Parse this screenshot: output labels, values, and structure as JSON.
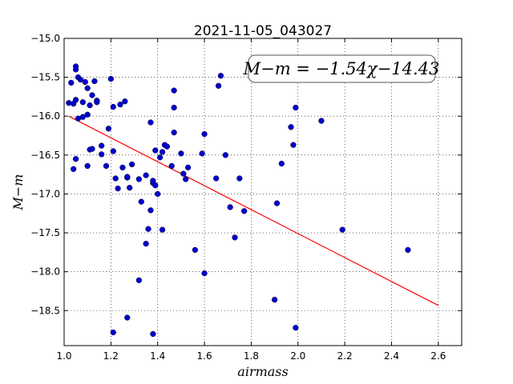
{
  "chart_data": {
    "type": "scatter",
    "title": "2021-11-05_043027",
    "xlabel": "airmass",
    "ylabel": "M−m",
    "xlim": [
      1.0,
      2.7
    ],
    "ylim": [
      -15.0,
      -18.95
    ],
    "y_inverted": true,
    "grid": true,
    "xticks": [
      "1.0",
      "1.2",
      "1.4",
      "1.6",
      "1.8",
      "2.0",
      "2.2",
      "2.4",
      "2.6"
    ],
    "yticks": [
      "−15.0",
      "−15.5",
      "−16.0",
      "−16.5",
      "−17.0",
      "−17.5",
      "−18.0",
      "−18.5"
    ],
    "annotation": "M−m = −1.54χ−14.43",
    "fit_line": {
      "slope": -1.54,
      "intercept": -14.43,
      "x_range": [
        1.02,
        2.6
      ],
      "color": "#ff0000"
    },
    "point_color": "#0000cc",
    "points": [
      [
        1.02,
        -15.83
      ],
      [
        1.03,
        -15.57
      ],
      [
        1.04,
        -15.84
      ],
      [
        1.05,
        -15.79
      ],
      [
        1.05,
        -15.36
      ],
      [
        1.05,
        -15.4
      ],
      [
        1.06,
        -15.5
      ],
      [
        1.06,
        -16.03
      ],
      [
        1.07,
        -15.53
      ],
      [
        1.08,
        -16.01
      ],
      [
        1.08,
        -15.82
      ],
      [
        1.09,
        -15.56
      ],
      [
        1.1,
        -15.64
      ],
      [
        1.1,
        -15.98
      ],
      [
        1.11,
        -15.86
      ],
      [
        1.12,
        -15.73
      ],
      [
        1.13,
        -15.55
      ],
      [
        1.14,
        -15.8
      ],
      [
        1.14,
        -15.82
      ],
      [
        1.04,
        -16.68
      ],
      [
        1.05,
        -16.55
      ],
      [
        1.1,
        -16.64
      ],
      [
        1.11,
        -16.43
      ],
      [
        1.12,
        -16.42
      ],
      [
        1.16,
        -16.38
      ],
      [
        1.16,
        -16.49
      ],
      [
        1.18,
        -16.64
      ],
      [
        1.19,
        -16.16
      ],
      [
        1.2,
        -15.52
      ],
      [
        1.21,
        -15.88
      ],
      [
        1.21,
        -16.45
      ],
      [
        1.22,
        -16.8
      ],
      [
        1.23,
        -16.93
      ],
      [
        1.24,
        -15.85
      ],
      [
        1.25,
        -16.66
      ],
      [
        1.26,
        -15.81
      ],
      [
        1.27,
        -16.79
      ],
      [
        1.27,
        -16.78
      ],
      [
        1.28,
        -16.92
      ],
      [
        1.29,
        -16.62
      ],
      [
        1.32,
        -16.81
      ],
      [
        1.33,
        -17.1
      ],
      [
        1.35,
        -16.76
      ],
      [
        1.35,
        -17.64
      ],
      [
        1.36,
        -17.45
      ],
      [
        1.37,
        -16.08
      ],
      [
        1.37,
        -17.21
      ],
      [
        1.38,
        -16.86
      ],
      [
        1.39,
        -16.44
      ],
      [
        1.39,
        -16.89
      ],
      [
        1.38,
        -16.83
      ],
      [
        1.4,
        -17.0
      ],
      [
        1.41,
        -16.53
      ],
      [
        1.42,
        -17.46
      ],
      [
        1.42,
        -16.46
      ],
      [
        1.43,
        -16.37
      ],
      [
        1.44,
        -16.39
      ],
      [
        1.46,
        -16.64
      ],
      [
        1.47,
        -16.21
      ],
      [
        1.47,
        -15.67
      ],
      [
        1.47,
        -15.89
      ],
      [
        1.5,
        -16.48
      ],
      [
        1.51,
        -16.74
      ],
      [
        1.52,
        -16.81
      ],
      [
        1.53,
        -16.66
      ],
      [
        1.56,
        -17.72
      ],
      [
        1.59,
        -16.48
      ],
      [
        1.6,
        -16.23
      ],
      [
        1.6,
        -18.02
      ],
      [
        1.65,
        -16.8
      ],
      [
        1.66,
        -15.61
      ],
      [
        1.67,
        -15.48
      ],
      [
        1.69,
        -16.5
      ],
      [
        1.71,
        -17.17
      ],
      [
        1.73,
        -17.56
      ],
      [
        1.75,
        -16.8
      ],
      [
        1.77,
        -17.22
      ],
      [
        1.21,
        -18.78
      ],
      [
        1.27,
        -18.59
      ],
      [
        1.32,
        -18.11
      ],
      [
        1.38,
        -18.8
      ],
      [
        1.9,
        -18.36
      ],
      [
        1.91,
        -17.12
      ],
      [
        1.93,
        -16.61
      ],
      [
        1.97,
        -16.14
      ],
      [
        1.98,
        -16.37
      ],
      [
        1.99,
        -15.89
      ],
      [
        1.99,
        -18.72
      ],
      [
        2.1,
        -16.06
      ],
      [
        2.19,
        -17.46
      ],
      [
        2.47,
        -17.72
      ]
    ]
  }
}
